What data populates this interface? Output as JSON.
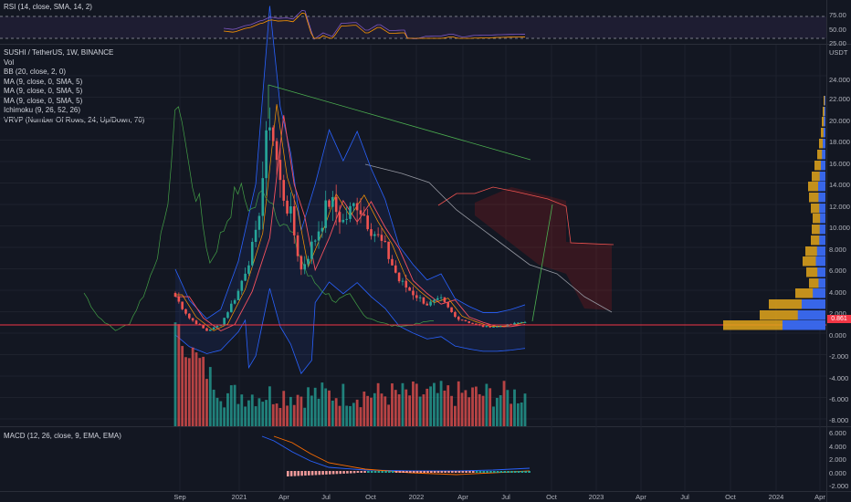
{
  "rsi": {
    "legend": "RSI (14, close, SMA, 14, 2)",
    "ticks": [
      "75.00",
      "50.00",
      "25.00"
    ]
  },
  "main": {
    "title": "SUSHI / TetherUS, 1W, BINANCE",
    "indicators": [
      "Vol",
      "BB (20, close, 2, 0)",
      "MA (9, close, 0, SMA, 5)",
      "MA (9, close, 0, SMA, 5)",
      "MA (9, close, 0, SMA, 5)",
      "Ichimoku (9, 26, 52, 26)",
      "VRVP (Number Of Rows, 24, Up/Down, 70)"
    ],
    "unit": "USDT",
    "ticks": [
      "24.000",
      "22.000",
      "20.000",
      "18.000",
      "16.000",
      "14.000",
      "12.000",
      "10.000",
      "8.000",
      "6.000",
      "4.000",
      "2.000",
      "0.000",
      "-2.000",
      "-4.000",
      "-6.000",
      "-8.000"
    ],
    "last_price": "0.861"
  },
  "macd": {
    "legend": "MACD (12, 26, close, 9, EMA, EMA)",
    "ticks": [
      "6.000",
      "4.000",
      "2.000",
      "0.000",
      "-2.000"
    ]
  },
  "time_axis": [
    "Sep",
    "2021",
    "Apr",
    "Jul",
    "Oct",
    "2022",
    "Apr",
    "Jul",
    "Oct",
    "2023",
    "Apr",
    "Jul",
    "Oct",
    "2024",
    "Apr"
  ],
  "colors": {
    "up": "#26a69a",
    "down": "#ef5350",
    "background": "#131722",
    "price_line": "#f23645",
    "profile_up": "#2962ff",
    "profile_down": "#e3a61b"
  }
}
